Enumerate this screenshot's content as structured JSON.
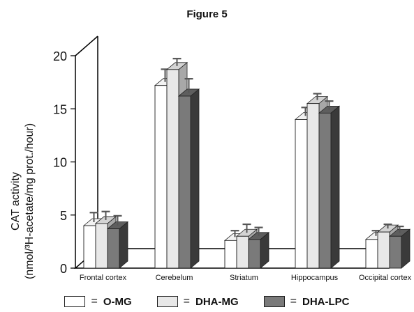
{
  "chart_data": {
    "type": "bar",
    "title": "Figure 5",
    "ylabel_line1": "CAT activity",
    "ylabel_line2": "(nmol/³H-acetate/mg prot./hour)",
    "ylim": [
      0,
      20
    ],
    "yticks": [
      0,
      5,
      10,
      15,
      20
    ],
    "categories": [
      "Frontal cortex",
      "Cerebelum",
      "Striatum",
      "Hippocampus",
      "Occipital cortex"
    ],
    "series": [
      {
        "name": "O-MG",
        "values": [
          4.0,
          17.2,
          2.6,
          14.0,
          2.7
        ],
        "errors": [
          0.9,
          1.2,
          0.6,
          0.8,
          0.5
        ]
      },
      {
        "name": "DHA-MG",
        "values": [
          4.2,
          18.7,
          3.0,
          15.5,
          3.4
        ],
        "errors": [
          0.8,
          0.7,
          0.8,
          0.6,
          0.4
        ]
      },
      {
        "name": "DHA-LPC",
        "values": [
          3.7,
          16.2,
          2.7,
          14.6,
          3.0
        ],
        "errors": [
          0.9,
          1.3,
          0.8,
          0.8,
          0.6
        ]
      }
    ],
    "colors": [
      "#ffffff",
      "#e8e8e8",
      "#7a7a7a"
    ],
    "grid": false,
    "legend_position": "bottom",
    "legend_equals": "="
  }
}
